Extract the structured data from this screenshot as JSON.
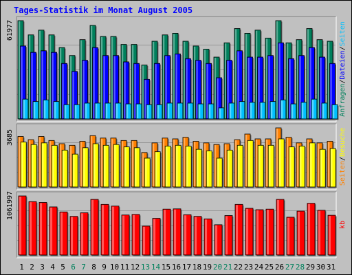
{
  "chart_data": {
    "type": "bar",
    "title": "Tages-Statistik im Monat August 2005",
    "categories": [
      "1",
      "2",
      "3",
      "4",
      "5",
      "6",
      "7",
      "8",
      "9",
      "10",
      "11",
      "12",
      "13",
      "14",
      "15",
      "16",
      "17",
      "18",
      "19",
      "20",
      "21",
      "22",
      "23",
      "24",
      "25",
      "26",
      "27",
      "28",
      "29",
      "30",
      "31"
    ],
    "weekend_days": [
      "6",
      "7",
      "13",
      "14",
      "20",
      "21",
      "27",
      "28"
    ],
    "panels": [
      {
        "id": "hits",
        "max_label": "61977",
        "ymax": 61977,
        "legend": [
          {
            "text": "Anfragen",
            "color": "#00805c"
          },
          {
            "text": "/",
            "color": "#000000"
          },
          {
            "text": "Dateien",
            "color": "#0000ff"
          },
          {
            "text": "/",
            "color": "#000000"
          },
          {
            "text": "Seiten",
            "color": "#00c0ff"
          }
        ],
        "series": [
          {
            "name": "Anfragen",
            "color": "#00805c",
            "values": [
              61977,
              53000,
              56000,
              53000,
              45000,
              40000,
              50000,
              59000,
              52000,
              52000,
              47000,
              47000,
              34000,
              49000,
              53000,
              54000,
              49000,
              46000,
              44000,
              39000,
              48000,
              57000,
              54000,
              56000,
              51000,
              61977,
              48000,
              50000,
              57000,
              50000,
              49000
            ]
          },
          {
            "name": "Dateien",
            "color": "#0000ff",
            "values": [
              46000,
              42000,
              43000,
              42000,
              35000,
              30000,
              37000,
              45000,
              40000,
              40000,
              36000,
              35000,
              25000,
              35000,
              40000,
              41000,
              38000,
              37000,
              35000,
              26000,
              37000,
              43000,
              39000,
              39000,
              40000,
              48000,
              38000,
              40000,
              45000,
              39000,
              35000
            ]
          },
          {
            "name": "Seiten",
            "color": "#00c0ff",
            "values": [
              12500,
              11000,
              12000,
              11000,
              9000,
              9000,
              10000,
              10000,
              10000,
              10000,
              9500,
              9500,
              9000,
              9000,
              10000,
              10000,
              10000,
              9500,
              9500,
              7000,
              10000,
              11000,
              10500,
              10500,
              11000,
              12000,
              9500,
              10500,
              12500,
              10000,
              9000
            ]
          }
        ]
      },
      {
        "id": "visits",
        "max_label": "3685",
        "ymax": 3685,
        "legend": [
          {
            "text": "Seiten",
            "color": "#ff8000"
          },
          {
            "text": "/",
            "color": "#000000"
          },
          {
            "text": "Besuche",
            "color": "#ffff00"
          }
        ],
        "series": [
          {
            "name": "Seiten",
            "color": "#ff8000",
            "values": [
              3150,
              2950,
              3150,
              2900,
              2700,
              2600,
              2850,
              3200,
              3050,
              3050,
              2900,
              2900,
              2150,
              2750,
              3050,
              3000,
              3100,
              2850,
              2750,
              2650,
              2700,
              2950,
              3300,
              3000,
              3000,
              3685,
              3100,
              2750,
              3000,
              2750,
              2850
            ]
          },
          {
            "name": "Besuche",
            "color": "#ffff00",
            "values": [
              2800,
              2650,
              2750,
              2600,
              2300,
              2050,
              2450,
              2700,
              2600,
              2650,
              2500,
              2450,
              1800,
              2200,
              2550,
              2600,
              2550,
              2350,
              2250,
              1800,
              2300,
              2600,
              2900,
              2600,
              2600,
              3000,
              2500,
              2550,
              2750,
              2350,
              2400
            ]
          }
        ]
      },
      {
        "id": "kbytes",
        "max_label": "1061997",
        "ymax": 1061997,
        "legend": [
          {
            "text": "kb",
            "color": "#ff0000"
          }
        ],
        "series": [
          {
            "name": "kb",
            "color": "#ff0000",
            "values": [
              1061997,
              960000,
              945000,
              865000,
              775000,
              695000,
              760000,
              1000000,
              910000,
              880000,
              720000,
              730000,
              520000,
              660000,
              825000,
              830000,
              725000,
              695000,
              650000,
              545000,
              710000,
              910000,
              840000,
              815000,
              825000,
              1000000,
              680000,
              790000,
              930000,
              805000,
              715000
            ]
          }
        ]
      }
    ]
  }
}
